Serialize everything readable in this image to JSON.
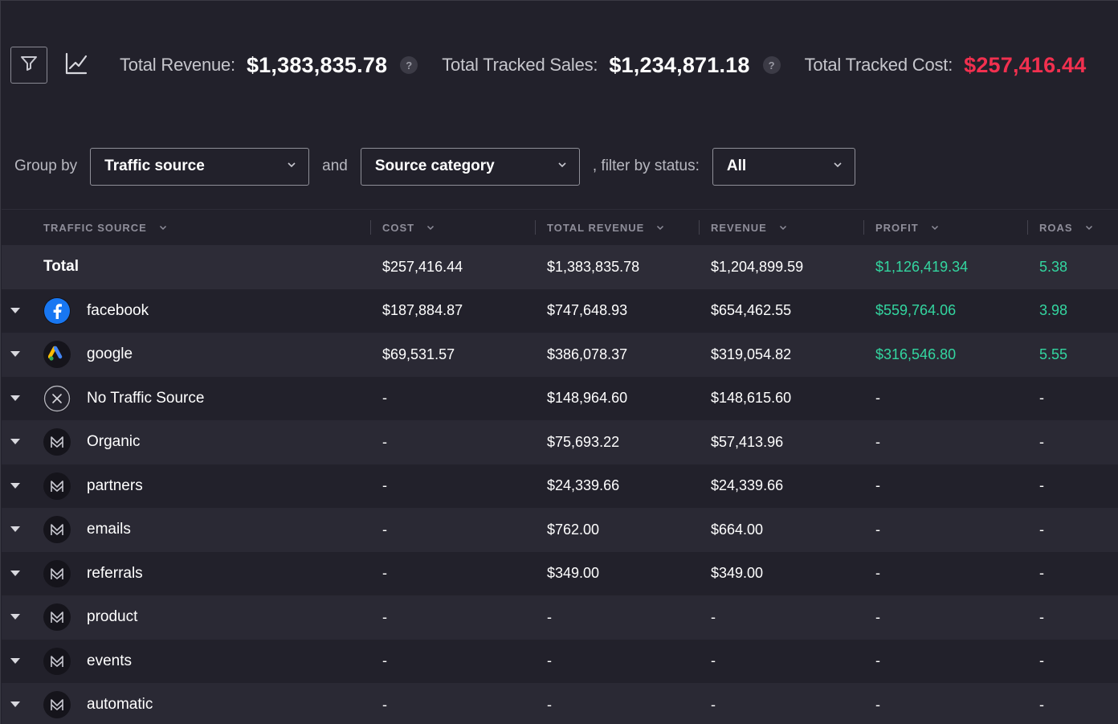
{
  "header": {
    "filter_icon": "filter-icon",
    "chart_icon": "line-chart-icon",
    "metrics": [
      {
        "label": "Total Revenue:",
        "value": "$1,383,835.78",
        "help": "?"
      },
      {
        "label": "Total Tracked Sales:",
        "value": "$1,234,871.18",
        "help": "?"
      },
      {
        "label": "Total Tracked Cost:",
        "value": "$257,416.44",
        "value_color": "#f2304f"
      }
    ]
  },
  "group_bar": {
    "group_by_label": "Group by",
    "group1_value": "Traffic source",
    "and_label": "and",
    "group2_value": "Source category",
    "filter_label": ", filter by status:",
    "status_value": "All"
  },
  "table": {
    "columns": [
      "TRAFFIC SOURCE",
      "COST",
      "TOTAL REVENUE",
      "REVENUE",
      "PROFIT",
      "ROAS"
    ],
    "total_row": {
      "label": "Total",
      "cost": "$257,416.44",
      "total_revenue": "$1,383,835.78",
      "revenue": "$1,204,899.59",
      "profit": "$1,126,419.34",
      "roas": "5.38"
    },
    "rows": [
      {
        "icon": "facebook-icon",
        "name": "facebook",
        "cost": "$187,884.87",
        "total_revenue": "$747,648.93",
        "revenue": "$654,462.55",
        "profit": "$559,764.06",
        "roas": "3.98"
      },
      {
        "icon": "google-ads-icon",
        "name": "google",
        "cost": "$69,531.57",
        "total_revenue": "$386,078.37",
        "revenue": "$319,054.82",
        "profit": "$316,546.80",
        "roas": "5.55"
      },
      {
        "icon": "no-source-icon",
        "name": "No Traffic Source",
        "cost": "-",
        "total_revenue": "$148,964.60",
        "revenue": "$148,615.60",
        "profit": "-",
        "roas": "-"
      },
      {
        "icon": "brand-logo-icon",
        "name": "Organic",
        "cost": "-",
        "total_revenue": "$75,693.22",
        "revenue": "$57,413.96",
        "profit": "-",
        "roas": "-"
      },
      {
        "icon": "brand-logo-icon",
        "name": "partners",
        "cost": "-",
        "total_revenue": "$24,339.66",
        "revenue": "$24,339.66",
        "profit": "-",
        "roas": "-"
      },
      {
        "icon": "brand-logo-icon",
        "name": "emails",
        "cost": "-",
        "total_revenue": "$762.00",
        "revenue": "$664.00",
        "profit": "-",
        "roas": "-"
      },
      {
        "icon": "brand-logo-icon",
        "name": "referrals",
        "cost": "-",
        "total_revenue": "$349.00",
        "revenue": "$349.00",
        "profit": "-",
        "roas": "-"
      },
      {
        "icon": "brand-logo-icon",
        "name": "product",
        "cost": "-",
        "total_revenue": "-",
        "revenue": "-",
        "profit": "-",
        "roas": "-"
      },
      {
        "icon": "brand-logo-icon",
        "name": "events",
        "cost": "-",
        "total_revenue": "-",
        "revenue": "-",
        "profit": "-",
        "roas": "-"
      },
      {
        "icon": "brand-logo-icon",
        "name": "automatic",
        "cost": "-",
        "total_revenue": "-",
        "revenue": "-",
        "profit": "-",
        "roas": "-"
      }
    ]
  },
  "colors": {
    "background": "#22212b",
    "row_alt": "#2a2934",
    "profit_green": "#33d6a0",
    "cost_red": "#f2304f"
  }
}
